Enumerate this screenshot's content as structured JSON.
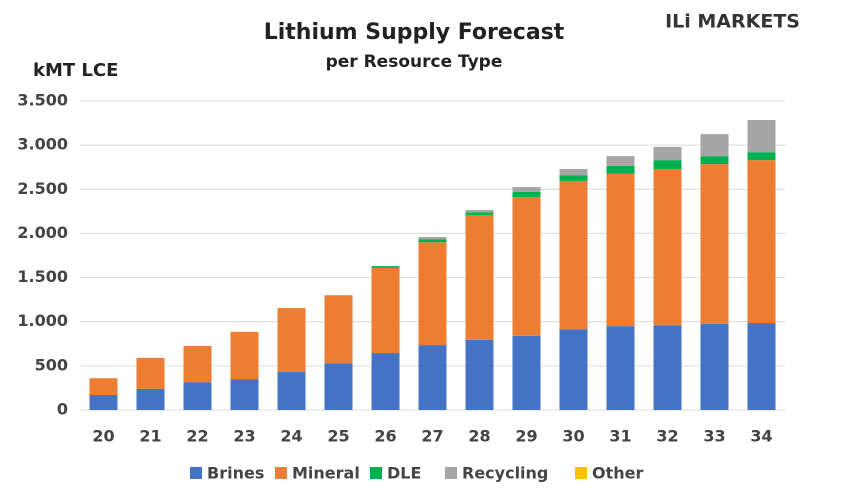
{
  "chart_data": {
    "type": "stacked_bar",
    "title": "Lithium Supply Forecast",
    "subtitle": "per Resource Type",
    "ylabel": "kMT LCE",
    "logo": "ILi MARKETS",
    "categories": [
      "20",
      "21",
      "22",
      "23",
      "24",
      "25",
      "26",
      "27",
      "28",
      "29",
      "30",
      "31",
      "32",
      "33",
      "34"
    ],
    "series": [
      {
        "name": "Brines",
        "color": "#4472c4",
        "values": [
          170,
          240,
          315,
          350,
          430,
          530,
          645,
          735,
          795,
          840,
          915,
          950,
          960,
          975,
          985
        ]
      },
      {
        "name": "Mineral",
        "color": "#ed7d31",
        "values": [
          190,
          350,
          410,
          535,
          725,
          770,
          965,
          1165,
          1415,
          1570,
          1680,
          1725,
          1770,
          1810,
          1845
        ]
      },
      {
        "name": "DLE",
        "color": "#00b050",
        "values": [
          0,
          0,
          0,
          0,
          0,
          0,
          20,
          35,
          30,
          60,
          65,
          90,
          100,
          90,
          90
        ]
      },
      {
        "name": "Recycling",
        "color": "#a5a5a5",
        "values": [
          0,
          0,
          0,
          0,
          0,
          0,
          0,
          25,
          25,
          55,
          70,
          110,
          150,
          250,
          365
        ]
      },
      {
        "name": "Other",
        "color": "#ffc000",
        "values": [
          0,
          0,
          0,
          0,
          0,
          0,
          0,
          0,
          0,
          0,
          0,
          0,
          0,
          0,
          0
        ]
      }
    ],
    "ylim": [
      0,
      3500
    ],
    "yticks": [
      0,
      500,
      {
        "value": 1000,
        "label": "1.000"
      },
      {
        "value": 1500,
        "label": "1.500"
      },
      {
        "value": 2000,
        "label": "2.000"
      },
      {
        "value": 2500,
        "label": "2.500"
      },
      {
        "value": 3000,
        "label": "3.000"
      },
      {
        "value": 3500,
        "label": "3.500"
      }
    ],
    "grid": true
  }
}
